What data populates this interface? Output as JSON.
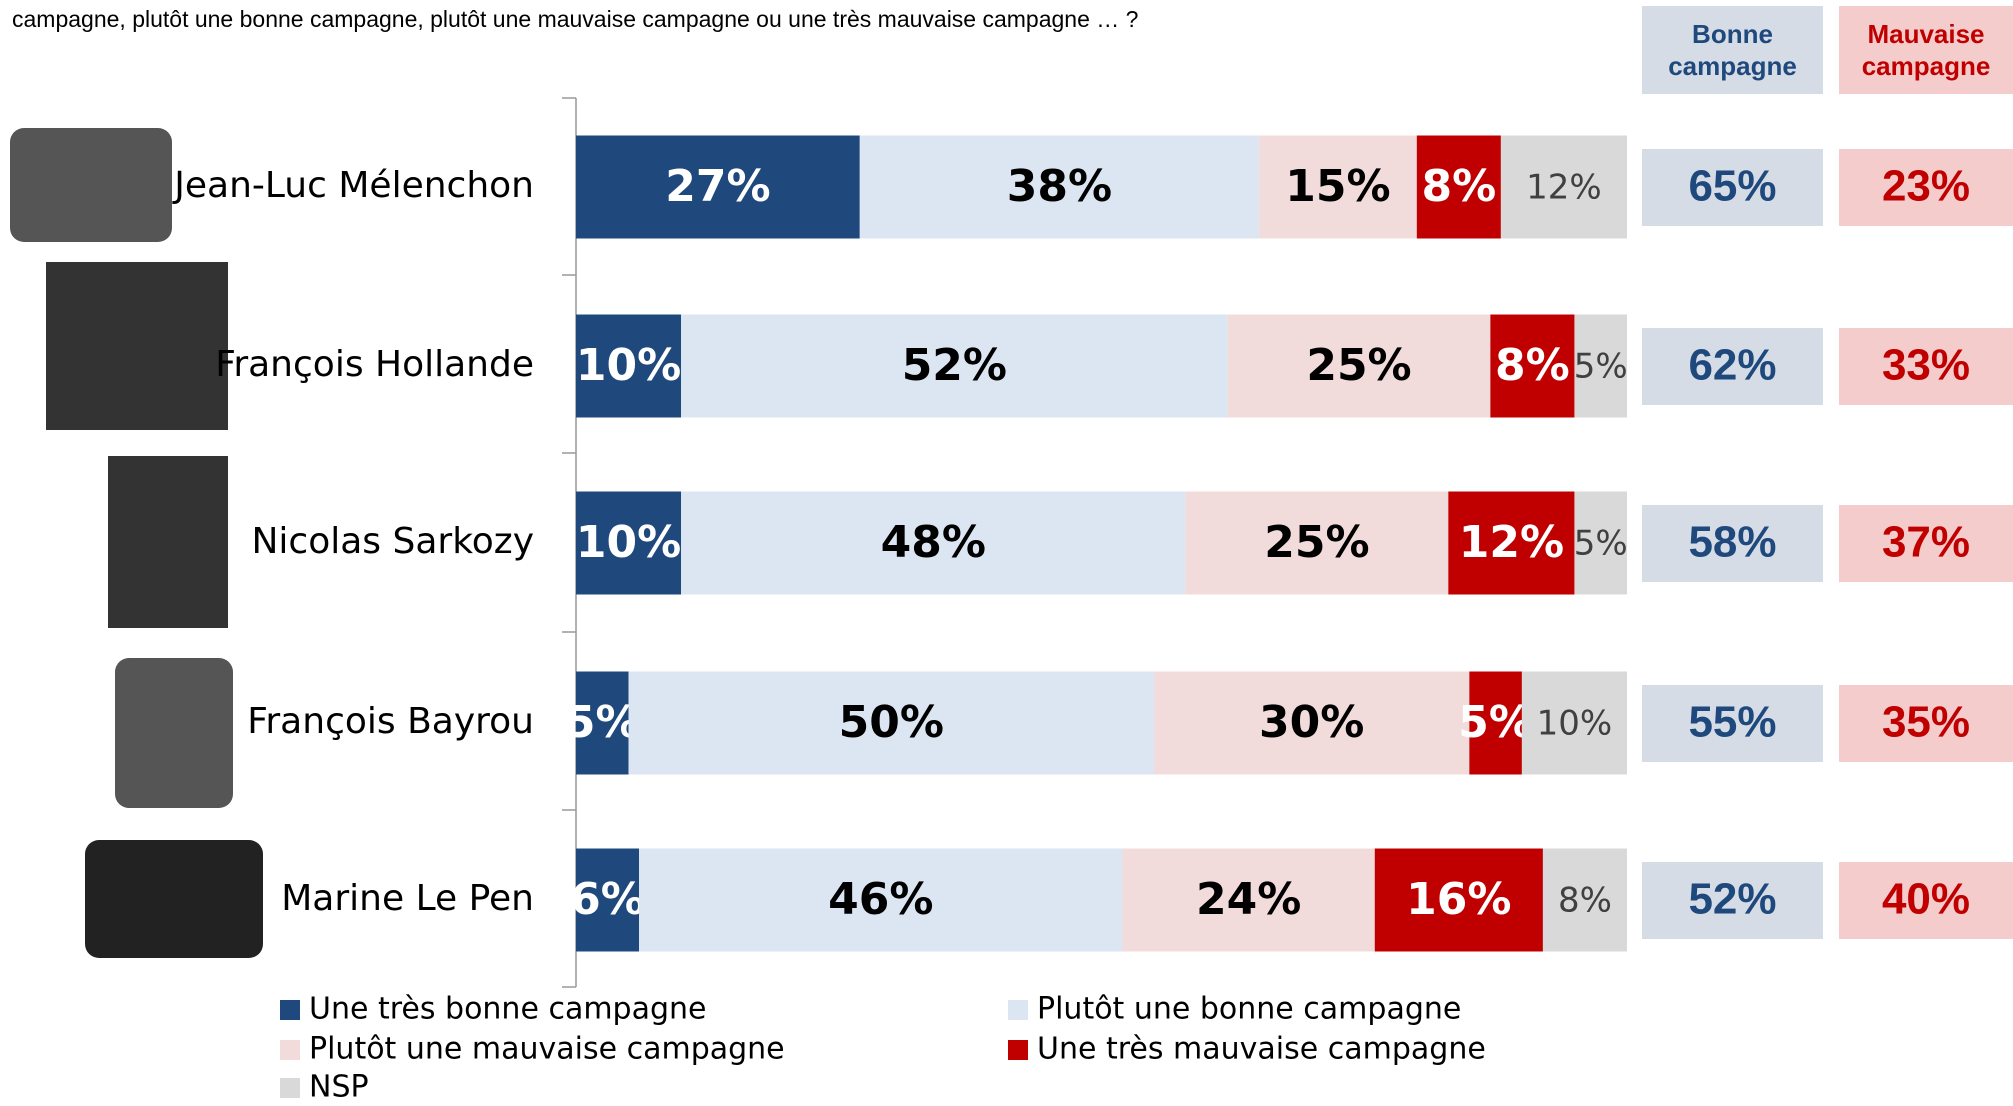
{
  "chart_data": {
    "type": "stacked-bar-horizontal",
    "title": "campagne, plutôt une bonne campagne, plutôt une mauvaise campagne ou une très mauvaise campagne … ?",
    "categories": [
      "Jean-Luc Mélenchon",
      "François Hollande",
      "Nicolas Sarkozy",
      "François Bayrou",
      "Marine Le Pen"
    ],
    "series": [
      {
        "name": "Une très bonne campagne",
        "color": "#1f497d",
        "label_color": "#ffffff",
        "values": [
          27,
          10,
          10,
          5,
          6
        ],
        "value_labels": [
          "27%",
          "10%",
          "10%",
          "5%",
          "6%"
        ]
      },
      {
        "name": "Plutôt une bonne campagne",
        "color": "#dce6f2",
        "label_color": "#000000",
        "values": [
          38,
          52,
          48,
          50,
          46
        ],
        "value_labels": [
          "38%",
          "52%",
          "48%",
          "50%",
          "46%"
        ]
      },
      {
        "name": "Plutôt une mauvaise campagne",
        "color": "#f2dcdb",
        "label_color": "#000000",
        "values": [
          15,
          25,
          25,
          30,
          24
        ],
        "value_labels": [
          "15%",
          "25%",
          "25%",
          "30%",
          "24%"
        ]
      },
      {
        "name": "Une très mauvaise campagne",
        "color": "#c00000",
        "label_color": "#ffffff",
        "values": [
          8,
          8,
          12,
          5,
          16
        ],
        "value_labels": [
          "8%",
          "8%",
          "12%",
          "5%",
          "16%"
        ]
      },
      {
        "name": "NSP",
        "color": "#d9d9d9",
        "label_color": "#404040",
        "values": [
          12,
          5,
          5,
          10,
          8
        ],
        "value_labels": [
          "12%",
          "5%",
          "5%",
          "10%",
          "8%"
        ]
      }
    ],
    "summary_columns": [
      {
        "name": "Bonne campagne",
        "color": "#d6dce5",
        "text_color": "#1f497d",
        "values": [
          65,
          62,
          58,
          55,
          52
        ],
        "value_labels": [
          "65%",
          "62%",
          "58%",
          "55%",
          "52%"
        ]
      },
      {
        "name": "Mauvaise campagne",
        "color": "#f4cccc",
        "text_color": "#c00000",
        "values": [
          23,
          33,
          37,
          35,
          40
        ],
        "value_labels": [
          "23%",
          "33%",
          "37%",
          "35%",
          "40%"
        ]
      }
    ]
  }
}
